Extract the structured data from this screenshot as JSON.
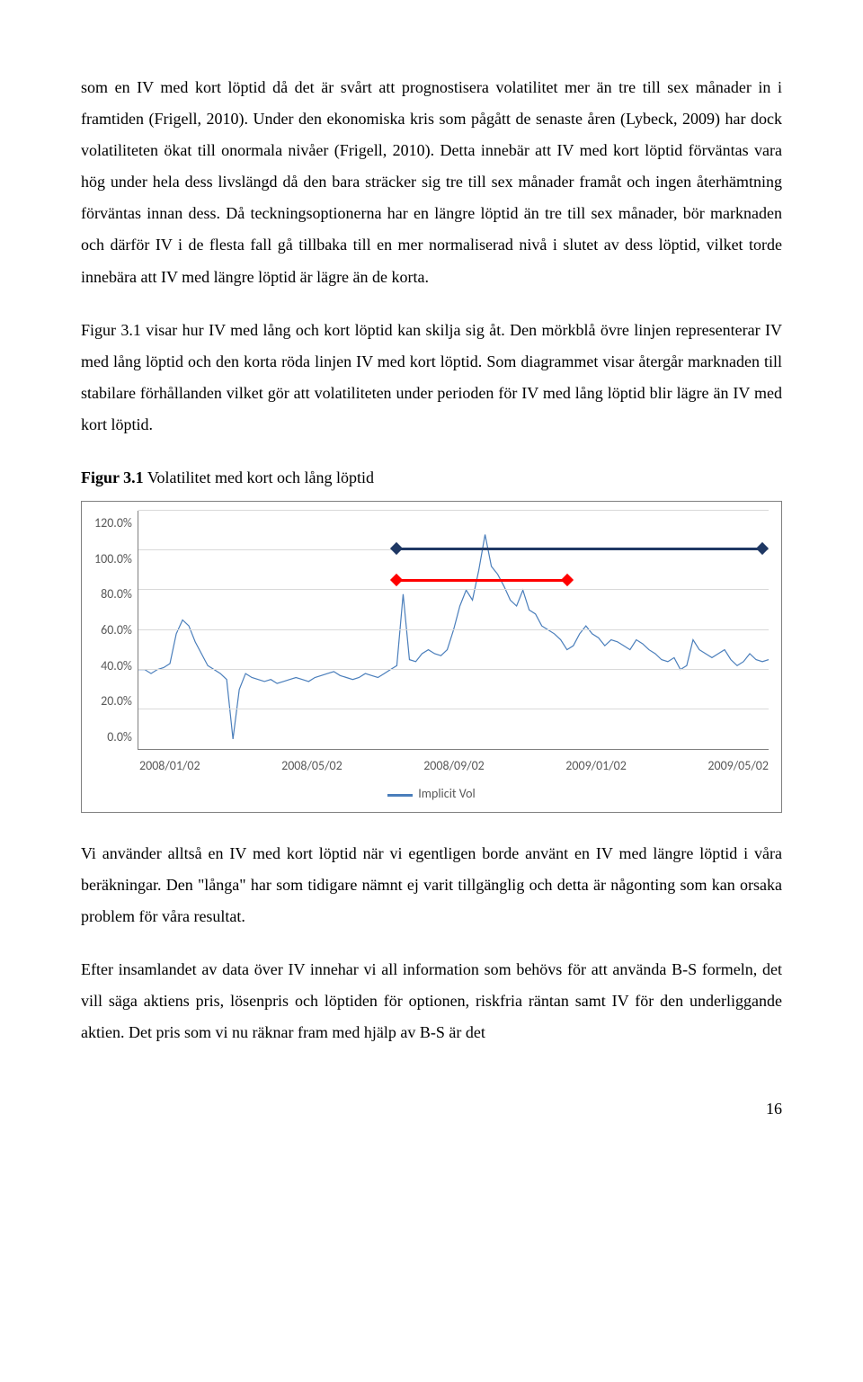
{
  "paragraphs": {
    "p1": "som en IV med kort löptid då det är svårt att prognostisera volatilitet mer än tre till sex månader in i framtiden (Frigell, 2010). Under den ekonomiska kris som pågått de senaste åren (Lybeck, 2009) har dock volatiliteten ökat till onormala nivåer (Frigell, 2010). Detta innebär att IV med kort löptid förväntas vara hög under hela dess livslängd då den bara sträcker sig tre till sex månader framåt och ingen återhämtning förväntas innan dess. Då teckningsoptionerna har en längre löptid än tre till sex månader, bör marknaden och därför IV i de flesta fall gå tillbaka till en mer normaliserad nivå i slutet av dess löptid, vilket torde innebära att IV med längre löptid är lägre än de korta.",
    "p2": "Figur 3.1 visar hur IV med lång och kort löptid kan skilja sig åt. Den mörkblå övre linjen representerar IV med lång löptid och den korta röda linjen IV med kort löptid. Som diagrammet visar återgår marknaden till stabilare förhållanden vilket gör att volatiliteten under perioden för IV med lång löptid blir lägre än IV med kort löptid.",
    "p3": "Vi använder alltså en IV med kort löptid när vi egentligen borde använt en IV med längre löptid i våra beräkningar. Den \"långa\" har som tidigare nämnt ej varit tillgänglig och detta är någonting som kan orsaka problem för våra resultat.",
    "p4": "Efter insamlandet av data över IV innehar vi all information som behövs för att använda B-S formeln, det vill säga aktiens pris, lösenpris och löptiden för optionen, riskfria räntan samt IV för den underliggande aktien. Det pris som vi nu räknar fram med hjälp av B-S är det"
  },
  "figure": {
    "caption_bold": "Figur 3.1",
    "caption_rest": " Volatilitet med kort och lång löptid"
  },
  "chart": {
    "type": "line",
    "ylim": [
      0,
      120
    ],
    "ytick_step": 20,
    "y_ticks": [
      "120.0%",
      "100.0%",
      "80.0%",
      "60.0%",
      "40.0%",
      "20.0%",
      "0.0%"
    ],
    "x_ticks": [
      "2008/01/02",
      "2008/05/02",
      "2008/09/02",
      "2009/01/02",
      "2009/05/02"
    ],
    "legend_label": "Implicit Vol",
    "series_color": "#4a7ebb",
    "grid_color": "#d9d9d9",
    "axis_color": "#808080",
    "tick_font_color": "#595959",
    "background_color": "#ffffff",
    "overlay_long": {
      "color": "#1f3864",
      "y": 101,
      "x_start_pct": 41,
      "x_end_pct": 99
    },
    "overlay_short": {
      "color": "#ff0000",
      "y": 85,
      "x_start_pct": 41,
      "x_end_pct": 68
    },
    "series": [
      [
        0,
        40
      ],
      [
        1,
        40
      ],
      [
        2,
        38
      ],
      [
        3,
        40
      ],
      [
        4,
        41
      ],
      [
        5,
        43
      ],
      [
        6,
        58
      ],
      [
        7,
        65
      ],
      [
        8,
        62
      ],
      [
        9,
        54
      ],
      [
        10,
        48
      ],
      [
        11,
        42
      ],
      [
        12,
        40
      ],
      [
        13,
        38
      ],
      [
        14,
        35
      ],
      [
        15,
        5
      ],
      [
        16,
        30
      ],
      [
        17,
        38
      ],
      [
        18,
        36
      ],
      [
        19,
        35
      ],
      [
        20,
        34
      ],
      [
        21,
        35
      ],
      [
        22,
        33
      ],
      [
        23,
        34
      ],
      [
        24,
        35
      ],
      [
        25,
        36
      ],
      [
        26,
        35
      ],
      [
        27,
        34
      ],
      [
        28,
        36
      ],
      [
        29,
        37
      ],
      [
        30,
        38
      ],
      [
        31,
        39
      ],
      [
        32,
        37
      ],
      [
        33,
        36
      ],
      [
        34,
        35
      ],
      [
        35,
        36
      ],
      [
        36,
        38
      ],
      [
        37,
        37
      ],
      [
        38,
        36
      ],
      [
        39,
        38
      ],
      [
        40,
        40
      ],
      [
        41,
        42
      ],
      [
        42,
        78
      ],
      [
        43,
        45
      ],
      [
        44,
        44
      ],
      [
        45,
        48
      ],
      [
        46,
        50
      ],
      [
        47,
        48
      ],
      [
        48,
        47
      ],
      [
        49,
        50
      ],
      [
        50,
        60
      ],
      [
        51,
        72
      ],
      [
        52,
        80
      ],
      [
        53,
        75
      ],
      [
        54,
        90
      ],
      [
        55,
        108
      ],
      [
        56,
        92
      ],
      [
        57,
        88
      ],
      [
        58,
        82
      ],
      [
        59,
        75
      ],
      [
        60,
        72
      ],
      [
        61,
        80
      ],
      [
        62,
        70
      ],
      [
        63,
        68
      ],
      [
        64,
        62
      ],
      [
        65,
        60
      ],
      [
        66,
        58
      ],
      [
        67,
        55
      ],
      [
        68,
        50
      ],
      [
        69,
        52
      ],
      [
        70,
        58
      ],
      [
        71,
        62
      ],
      [
        72,
        58
      ],
      [
        73,
        56
      ],
      [
        74,
        52
      ],
      [
        75,
        55
      ],
      [
        76,
        54
      ],
      [
        77,
        52
      ],
      [
        78,
        50
      ],
      [
        79,
        55
      ],
      [
        80,
        53
      ],
      [
        81,
        50
      ],
      [
        82,
        48
      ],
      [
        83,
        45
      ],
      [
        84,
        44
      ],
      [
        85,
        46
      ],
      [
        86,
        40
      ],
      [
        87,
        42
      ],
      [
        88,
        55
      ],
      [
        89,
        50
      ],
      [
        90,
        48
      ],
      [
        91,
        46
      ],
      [
        92,
        48
      ],
      [
        93,
        50
      ],
      [
        94,
        45
      ],
      [
        95,
        42
      ],
      [
        96,
        44
      ],
      [
        97,
        48
      ],
      [
        98,
        45
      ],
      [
        99,
        44
      ],
      [
        100,
        45
      ]
    ]
  },
  "page_number": "16"
}
